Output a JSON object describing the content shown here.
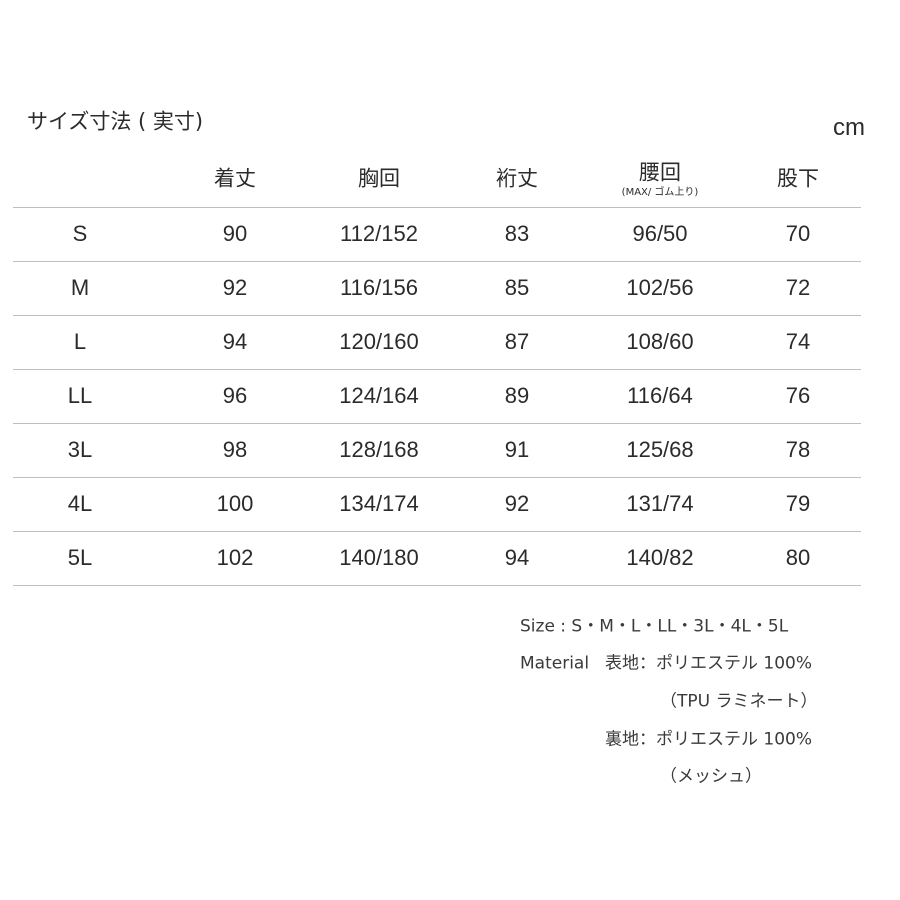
{
  "header": {
    "title": "サイズ寸法 ( 実寸)",
    "unit": "cm"
  },
  "table": {
    "columns": [
      "着丈",
      "胸回",
      "裄丈",
      "腰回",
      "股下"
    ],
    "column_note": {
      "column": 3,
      "text": "(MAX/ ゴム上り)"
    },
    "rows": [
      [
        "S",
        "90",
        "112/152",
        "83",
        "96/50",
        "70"
      ],
      [
        "M",
        "92",
        "116/156",
        "85",
        "102/56",
        "72"
      ],
      [
        "L",
        "94",
        "120/160",
        "87",
        "108/60",
        "74"
      ],
      [
        "LL",
        "96",
        "124/164",
        "89",
        "116/64",
        "76"
      ],
      [
        "3L",
        "98",
        "128/168",
        "91",
        "125/68",
        "78"
      ],
      [
        "4L",
        "100",
        "134/174",
        "92",
        "131/74",
        "79"
      ],
      [
        "5L",
        "102",
        "140/180",
        "94",
        "140/82",
        "80"
      ]
    ]
  },
  "notes": {
    "size": "Size : S・M・L・LL・3L・4L・5L",
    "material_label": "Material",
    "outer": "表地：ポリエステル 100%",
    "outer_detail": "（TPU ラミネート）",
    "lining": "裏地：ポリエステル 100%",
    "lining_detail": "（メッシュ）"
  }
}
